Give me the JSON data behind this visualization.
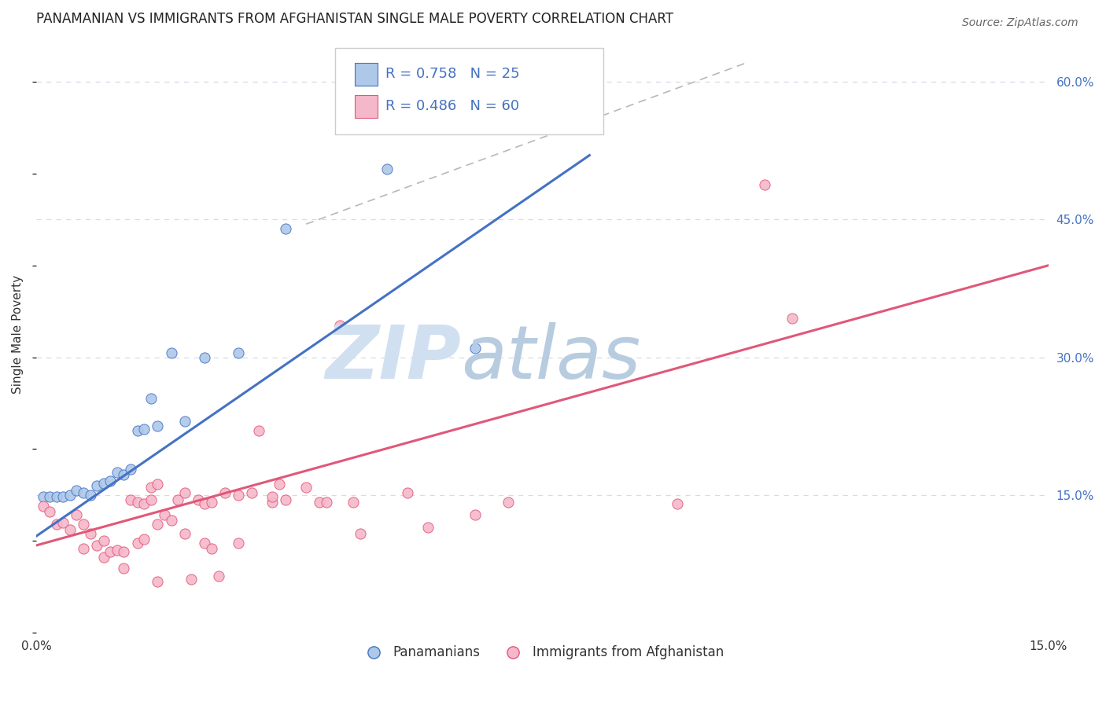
{
  "title": "PANAMANIAN VS IMMIGRANTS FROM AFGHANISTAN SINGLE MALE POVERTY CORRELATION CHART",
  "source": "Source: ZipAtlas.com",
  "ylabel": "Single Male Poverty",
  "xlim": [
    0.0,
    0.15
  ],
  "ylim": [
    0.0,
    0.65
  ],
  "blue_R": 0.758,
  "blue_N": 25,
  "pink_R": 0.486,
  "pink_N": 60,
  "blue_color": "#adc8e8",
  "pink_color": "#f5b8ca",
  "blue_line_color": "#4472c4",
  "pink_line_color": "#e05878",
  "dashed_line_color": "#b8b8b8",
  "legend_text_color": "#4472c4",
  "background_color": "#ffffff",
  "grid_color": "#d4dce8",
  "blue_line_x": [
    0.0,
    0.082
  ],
  "blue_line_y": [
    0.105,
    0.52
  ],
  "pink_line_x": [
    0.0,
    0.15
  ],
  "pink_line_y": [
    0.095,
    0.4
  ],
  "dash_line_x": [
    0.04,
    0.105
  ],
  "dash_line_y": [
    0.445,
    0.62
  ],
  "blue_points": [
    [
      0.001,
      0.148
    ],
    [
      0.002,
      0.148
    ],
    [
      0.003,
      0.148
    ],
    [
      0.004,
      0.148
    ],
    [
      0.005,
      0.15
    ],
    [
      0.006,
      0.155
    ],
    [
      0.007,
      0.152
    ],
    [
      0.008,
      0.15
    ],
    [
      0.009,
      0.16
    ],
    [
      0.01,
      0.163
    ],
    [
      0.011,
      0.165
    ],
    [
      0.012,
      0.175
    ],
    [
      0.013,
      0.172
    ],
    [
      0.014,
      0.178
    ],
    [
      0.015,
      0.22
    ],
    [
      0.016,
      0.222
    ],
    [
      0.017,
      0.255
    ],
    [
      0.018,
      0.225
    ],
    [
      0.02,
      0.305
    ],
    [
      0.022,
      0.23
    ],
    [
      0.025,
      0.3
    ],
    [
      0.03,
      0.305
    ],
    [
      0.037,
      0.44
    ],
    [
      0.052,
      0.505
    ],
    [
      0.065,
      0.31
    ]
  ],
  "pink_points": [
    [
      0.001,
      0.138
    ],
    [
      0.002,
      0.132
    ],
    [
      0.003,
      0.118
    ],
    [
      0.004,
      0.12
    ],
    [
      0.005,
      0.112
    ],
    [
      0.006,
      0.128
    ],
    [
      0.007,
      0.118
    ],
    [
      0.007,
      0.092
    ],
    [
      0.008,
      0.108
    ],
    [
      0.009,
      0.095
    ],
    [
      0.01,
      0.1
    ],
    [
      0.01,
      0.082
    ],
    [
      0.011,
      0.088
    ],
    [
      0.012,
      0.09
    ],
    [
      0.013,
      0.088
    ],
    [
      0.013,
      0.07
    ],
    [
      0.014,
      0.145
    ],
    [
      0.015,
      0.142
    ],
    [
      0.015,
      0.098
    ],
    [
      0.016,
      0.14
    ],
    [
      0.016,
      0.102
    ],
    [
      0.017,
      0.145
    ],
    [
      0.017,
      0.158
    ],
    [
      0.018,
      0.162
    ],
    [
      0.018,
      0.118
    ],
    [
      0.018,
      0.056
    ],
    [
      0.019,
      0.128
    ],
    [
      0.02,
      0.122
    ],
    [
      0.021,
      0.145
    ],
    [
      0.022,
      0.152
    ],
    [
      0.022,
      0.108
    ],
    [
      0.023,
      0.058
    ],
    [
      0.024,
      0.145
    ],
    [
      0.025,
      0.14
    ],
    [
      0.025,
      0.098
    ],
    [
      0.026,
      0.142
    ],
    [
      0.026,
      0.092
    ],
    [
      0.027,
      0.062
    ],
    [
      0.028,
      0.152
    ],
    [
      0.03,
      0.15
    ],
    [
      0.03,
      0.098
    ],
    [
      0.032,
      0.152
    ],
    [
      0.033,
      0.22
    ],
    [
      0.035,
      0.142
    ],
    [
      0.035,
      0.148
    ],
    [
      0.036,
      0.162
    ],
    [
      0.037,
      0.145
    ],
    [
      0.04,
      0.158
    ],
    [
      0.042,
      0.142
    ],
    [
      0.043,
      0.142
    ],
    [
      0.045,
      0.335
    ],
    [
      0.047,
      0.142
    ],
    [
      0.048,
      0.108
    ],
    [
      0.055,
      0.152
    ],
    [
      0.058,
      0.115
    ],
    [
      0.065,
      0.128
    ],
    [
      0.07,
      0.142
    ],
    [
      0.095,
      0.14
    ],
    [
      0.108,
      0.488
    ],
    [
      0.112,
      0.342
    ]
  ]
}
